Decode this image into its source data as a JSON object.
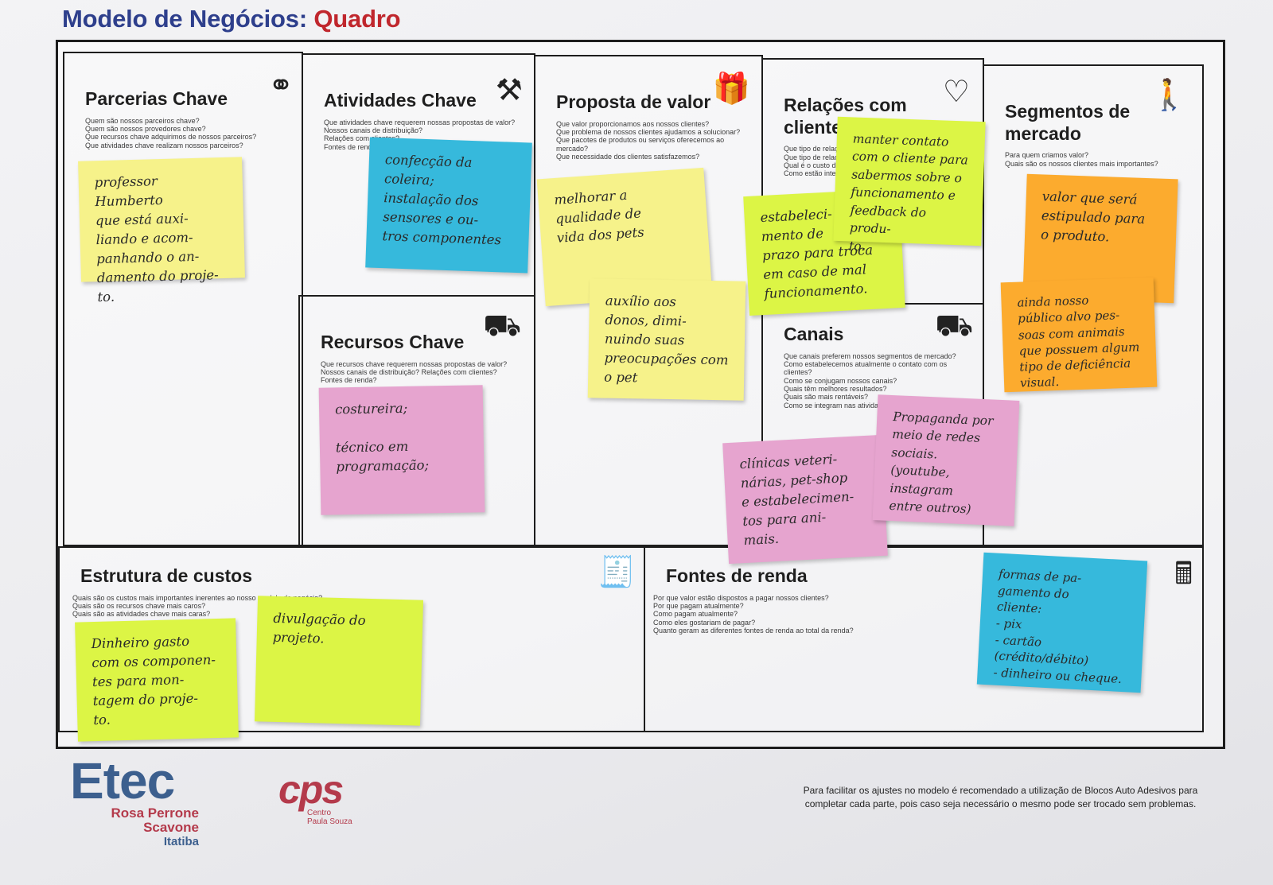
{
  "header": {
    "title_main": "Modelo de Negócios:",
    "title_accent": "Quadro"
  },
  "blocks": {
    "parcerias": {
      "title": "Parcerias Chave",
      "questions": [
        "Quem são nossos parceiros chave?",
        "Quem são nossos provedores chave?",
        "Que recursos chave adquirimos de nossos parceiros?",
        "Que atividades chave realizam nossos parceiros?"
      ]
    },
    "atividades": {
      "title": "Atividades Chave",
      "questions": [
        "Que atividades chave requerem nossas propostas de valor?",
        "Nossos canais de distribuição?",
        "Relações com clientes?",
        "Fontes de renda?"
      ]
    },
    "recursos": {
      "title": "Recursos Chave",
      "questions": [
        "Que recursos chave requerem nossas propostas de valor?",
        "Nossos canais de distribuição? Relações com clientes?",
        "Fontes de renda?"
      ]
    },
    "proposta": {
      "title": "Proposta de valor",
      "questions": [
        "Que valor proporcionamos aos nossos clientes?",
        "Que problema de nossos clientes ajudamos a solucionar?",
        "Que pacotes de produtos ou serviços oferecemos ao mercado?",
        "Que necessidade dos clientes satisfazemos?"
      ]
    },
    "relacoes": {
      "title": "Relações com clientes",
      "questions": [
        "Que tipo de relação esp",
        "Que tipo de relações te",
        "Qual é o custo destas r",
        "Como estão integrada"
      ]
    },
    "canais": {
      "title": "Canais",
      "questions": [
        "Que canais preferem nossos segmentos de mercado?",
        "Como estabelecemos atualmente o contato com os clientes?",
        "Como se conjugam nossos canais?",
        "Quais têm melhores resultados?",
        "Quais são mais rentáveis?",
        "Como se integram nas atividades diárias dos clientes?"
      ]
    },
    "segmentos": {
      "title": "Segmentos de mercado",
      "questions": [
        "Para quem criamos valor?",
        "Quais são os nossos clientes mais importantes?"
      ]
    },
    "custos": {
      "title": "Estrutura de custos",
      "questions": [
        "Quais são os custos mais importantes inerentes ao nosso modelo de negócio?",
        "Quais são os recursos chave mais caros?",
        "Quais são as atividades chave mais caras?"
      ]
    },
    "fontes": {
      "title": "Fontes de renda",
      "questions": [
        "Por que valor estão dispostos a pagar nossos clientes?",
        "Por que pagam atualmente?",
        "Como pagam atualmente?",
        "Como eles gostariam de pagar?",
        "Quanto geram as diferentes fontes de renda ao total da renda?"
      ]
    }
  },
  "icons": {
    "parcerias": "chain-links-icon",
    "atividades": "worker-icon",
    "recursos": "worker-with-crate-icon",
    "proposta": "gift-box-icon",
    "relacoes": "heart-icon",
    "canais": "truck-icon",
    "segmentos": "person-icon",
    "custos": "receipt-icon",
    "fontes": "cash-register-icon"
  },
  "notes": {
    "parcerias": "professor Humberto\nque está auxi-\nliando e acom-\npanhando o an-\ndamento do proje-\nto.",
    "atividades": "confecção da\ncoleira;\ninstalação dos\nsensores e ou-\ntros componentes",
    "recursos": "costureira;\n\ntécnico em\nprogramação;",
    "proposta_1": "melhorar a\nqualidade de\nvida dos pets",
    "proposta_2": "auxílio aos\ndonos, dimi-\nnuindo suas\npreocupações com\no pet",
    "relacoes_1": "manter contato\ncom o cliente para\nsabermos sobre o\nfuncionamento e\nfeedback do produ-\nto.",
    "relacoes_2": "estabeleci-\nmento de\nprazo para troca\nem caso de mal\nfuncionamento.",
    "canais_1": "clínicas veteri-\nnárias, pet-shop\ne estabelecimen-\ntos para ani-\nmais.",
    "canais_2": "Propaganda por\nmeio de redes\nsociais.\n(youtube, instagram\nentre outros)",
    "segmentos_1": "valor que será\nestipulado para\no produto.",
    "segmentos_2": "ainda nosso\npúblico alvo pes-\nsoas com animais\nque possuem algum\ntipo de deficiência\nvisual.",
    "custos_1": "Dinheiro gasto\ncom os componen-\ntes para mon-\ntagem do proje-\nto.",
    "custos_2": "divulgação do\nprojeto.",
    "fontes": "formas de pa-\ngamento do\ncliente:\n- pix\n- cartão (crédito/débito)\n- dinheiro ou cheque."
  },
  "footer": {
    "etec": "Etec",
    "etec_line1": "Rosa Perrone",
    "etec_line2": "Scavone",
    "etec_city": "Itatiba",
    "cps": "cps",
    "cps_line1": "Centro",
    "cps_line2": "Paula Souza",
    "note": "Para facilitar os ajustes no modelo é recomendado a utilização de Blocos Auto Adesivos para completar cada parte, pois caso seja necessário o mesmo pode ser trocado sem problemas."
  },
  "colors": {
    "title_blue": "#2e3f8c",
    "title_red": "#c0272d",
    "note_yellow": "#f6f28a",
    "note_lime": "#dcf545",
    "note_blue": "#36b9dc",
    "note_pink": "#e6a4cf",
    "note_orange": "#fcab2e"
  }
}
